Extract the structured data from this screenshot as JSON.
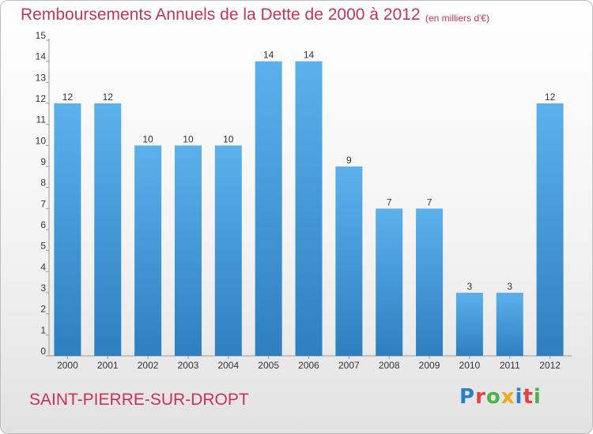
{
  "chart_data": {
    "type": "bar",
    "title": "Remboursements Annuels de la Dette de 2000 à 2012",
    "unit_label": "(en milliers d'€)",
    "categories": [
      "2000",
      "2001",
      "2002",
      "2003",
      "2004",
      "2005",
      "2006",
      "2007",
      "2008",
      "2009",
      "2010",
      "2011",
      "2012"
    ],
    "values": [
      12,
      12,
      10,
      10,
      10,
      14,
      14,
      9,
      7,
      7,
      3,
      3,
      12
    ],
    "ylim": [
      0,
      15
    ],
    "yticks": [
      0,
      1,
      2,
      3,
      4,
      5,
      6,
      7,
      8,
      9,
      10,
      11,
      12,
      13,
      14,
      15
    ],
    "grid": false,
    "bar_color": "#4da6e6"
  },
  "footer": {
    "commune": "SAINT-PIERRE-SUR-DROPT",
    "logo_letters": [
      {
        "ch": "P",
        "color": "#2a7fd4"
      },
      {
        "ch": "r",
        "color": "#e8413b"
      },
      {
        "ch": "o",
        "color": "#4db348"
      },
      {
        "ch": "x",
        "color": "#f2a81d"
      },
      {
        "ch": "i",
        "color": "#2a7fd4"
      },
      {
        "ch": "t",
        "color": "#e8413b"
      },
      {
        "ch": "i",
        "color": "#4db348"
      }
    ]
  }
}
